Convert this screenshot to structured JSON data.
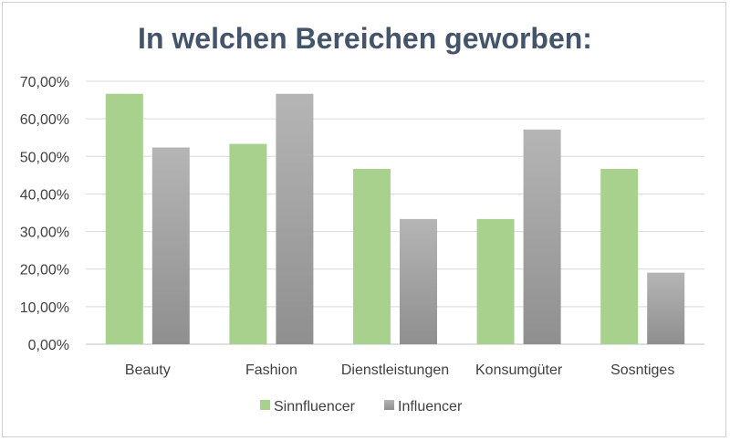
{
  "chart_data": {
    "type": "bar",
    "title": "In welchen Bereichen geworben:",
    "xlabel": "",
    "ylabel": "",
    "ylim": [
      0,
      70
    ],
    "yticks": [
      0,
      10,
      20,
      30,
      40,
      50,
      60,
      70
    ],
    "ytick_labels": [
      "0,00%",
      "10,00%",
      "20,00%",
      "30,00%",
      "40,00%",
      "50,00%",
      "60,00%",
      "70,00%"
    ],
    "categories": [
      "Beauty",
      "Fashion",
      "Dienstleistungen",
      "Konsumgüter",
      "Sosntiges"
    ],
    "series": [
      {
        "name": "Sinnfluencer",
        "color": "#a9d18e",
        "values": [
          66.67,
          53.33,
          46.67,
          33.33,
          46.67
        ]
      },
      {
        "name": "Influencer",
        "color": "#a5a5a5",
        "values": [
          52.38,
          66.67,
          33.33,
          57.14,
          19.05
        ]
      }
    ],
    "grid": true,
    "legend": "bottom"
  }
}
